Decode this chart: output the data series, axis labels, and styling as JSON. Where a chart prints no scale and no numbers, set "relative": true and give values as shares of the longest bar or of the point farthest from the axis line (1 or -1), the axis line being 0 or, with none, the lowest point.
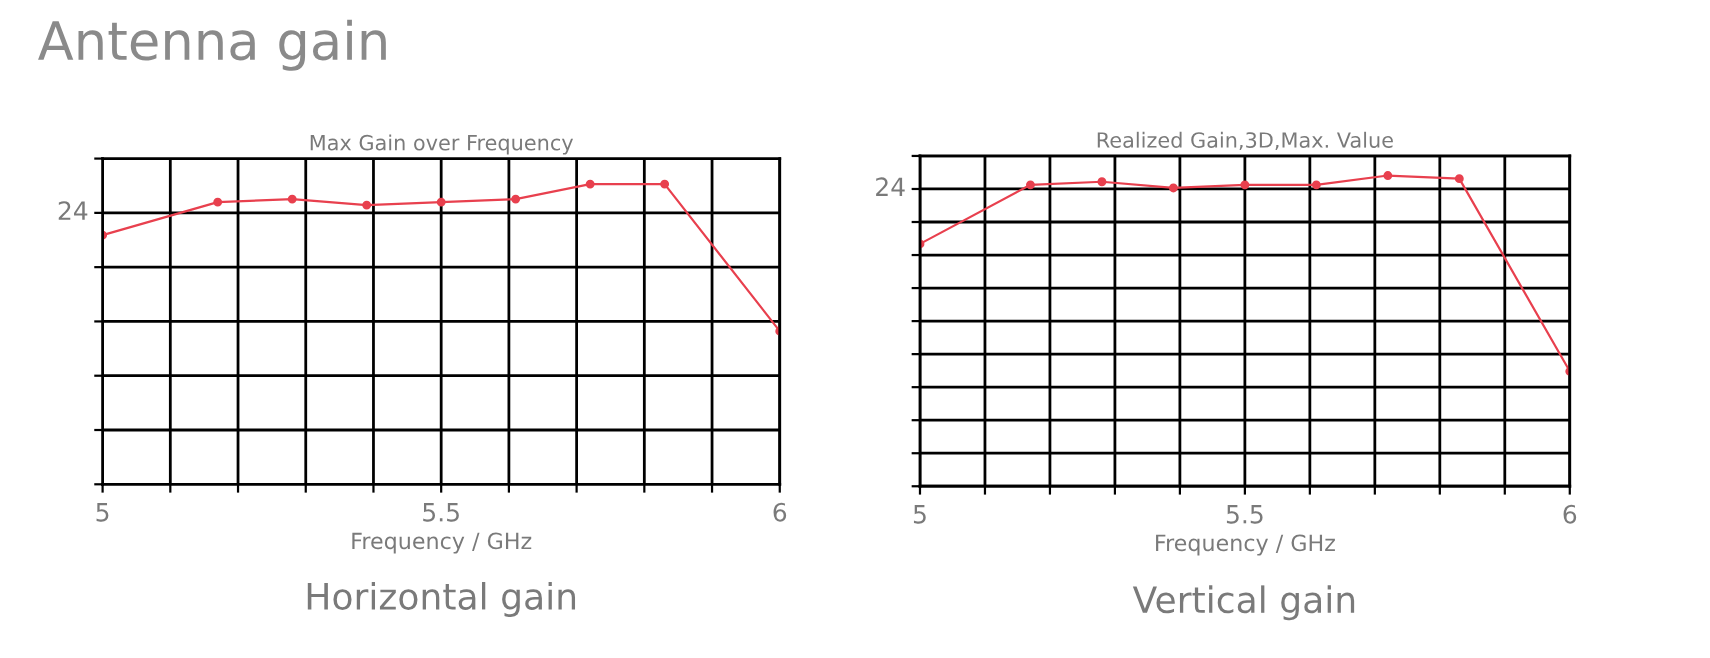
{
  "chart_data": [
    {
      "type": "line",
      "title": "Max Gain over Frequency",
      "subtitle": "Horizontal gain",
      "xlabel": "Frequency / GHz",
      "relative": true,
      "annotations": [
        "Antenna gain",
        "24"
      ],
      "xlim": [
        5,
        6
      ],
      "xticks": [
        5,
        {
          "value": 5.1,
          "label": null
        },
        {
          "value": 5.2,
          "label": null
        },
        {
          "value": 5.3,
          "label": null
        },
        {
          "value": 5.4,
          "label": null
        },
        5.5,
        {
          "value": 5.6,
          "label": null
        },
        {
          "value": 5.7,
          "label": null
        },
        {
          "value": 5.8,
          "label": null
        },
        {
          "value": 5.9,
          "label": null
        },
        6
      ],
      "grid": true,
      "marker": "circle",
      "line_style": "solid",
      "series": [
        {
          "color": "#e8404e",
          "x": [
            5,
            5.17,
            5.28,
            5.39,
            5.5,
            5.61,
            5.72,
            5.83,
            6
          ],
          "values": [
            0.83,
            0.94,
            0.95,
            0.93,
            0.94,
            0.95,
            1,
            1,
            0.51
          ]
        }
      ]
    },
    {
      "type": "line",
      "title": "Realized Gain,3D,Max. Value",
      "subtitle": "Vertical gain",
      "xlabel": "Frequency / GHz",
      "relative": true,
      "annotations": [
        "24"
      ],
      "xlim": [
        5,
        6
      ],
      "xticks": [
        5,
        {
          "value": 5.1,
          "label": null
        },
        {
          "value": 5.2,
          "label": null
        },
        {
          "value": 5.3,
          "label": null
        },
        {
          "value": 5.4,
          "label": null
        },
        5.5,
        {
          "value": 5.6,
          "label": null
        },
        {
          "value": 5.7,
          "label": null
        },
        {
          "value": 5.8,
          "label": null
        },
        {
          "value": 5.9,
          "label": null
        },
        6
      ],
      "grid": true,
      "marker": "circle",
      "line_style": "solid",
      "series": [
        {
          "color": "#e8404e",
          "x": [
            5,
            5.17,
            5.28,
            5.39,
            5.5,
            5.61,
            5.72,
            5.83,
            6
          ],
          "values": [
            0.78,
            0.97,
            0.98,
            0.96,
            0.97,
            0.97,
            1,
            0.99,
            0.37
          ]
        }
      ]
    }
  ]
}
